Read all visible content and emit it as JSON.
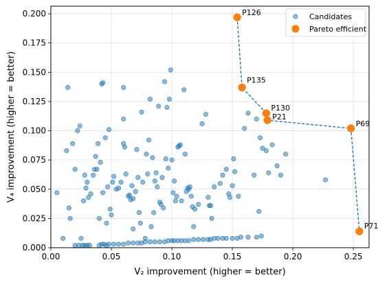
{
  "chart_data": {
    "type": "scatter",
    "xlabel": "V₂ improvement (higher = better)",
    "ylabel": "V₄ improvement (higher = better)",
    "xlim": [
      0.0,
      0.263
    ],
    "ylim": [
      0.0,
      0.2065
    ],
    "xticks": [
      0.0,
      0.05,
      0.1,
      0.15,
      0.2,
      0.25
    ],
    "xtick_labels": [
      "0.00",
      "0.05",
      "0.10",
      "0.15",
      "0.20",
      "0.25"
    ],
    "yticks": [
      0.0,
      0.025,
      0.05,
      0.075,
      0.1,
      0.125,
      0.15,
      0.175,
      0.2
    ],
    "ytick_labels": [
      "0.000",
      "0.025",
      "0.050",
      "0.075",
      "0.100",
      "0.125",
      "0.150",
      "0.175",
      "0.200"
    ],
    "grid": true,
    "legend_position": "top-right",
    "colors": {
      "candidates": "#1f77b4",
      "pareto": "#ff7f0e",
      "frontier_line": "#1f77b4"
    },
    "series": [
      {
        "name": "Candidates",
        "points": [
          [
            0.005,
            0.047
          ],
          [
            0.01,
            0.008
          ],
          [
            0.013,
            0.083
          ],
          [
            0.014,
            0.137
          ],
          [
            0.015,
            0.034
          ],
          [
            0.016,
            0.025
          ],
          [
            0.018,
            0.089
          ],
          [
            0.02,
            0.067
          ],
          [
            0.022,
            0.1
          ],
          [
            0.024,
            0.104
          ],
          [
            0.025,
            0.008
          ],
          [
            0.027,
            0.04
          ],
          [
            0.028,
            0.062
          ],
          [
            0.029,
            0.051
          ],
          [
            0.03,
            0.056
          ],
          [
            0.031,
            0.043
          ],
          [
            0.033,
            0.046
          ],
          [
            0.035,
            0.062
          ],
          [
            0.036,
            0.067
          ],
          [
            0.037,
            0.078
          ],
          [
            0.038,
            0.067
          ],
          [
            0.039,
            0.089
          ],
          [
            0.04,
            0.025
          ],
          [
            0.041,
            0.073
          ],
          [
            0.042,
            0.14
          ],
          [
            0.043,
            0.141
          ],
          [
            0.043,
            0.047
          ],
          [
            0.045,
            0.094
          ],
          [
            0.046,
            0.021
          ],
          [
            0.047,
            0.052
          ],
          [
            0.048,
            0.101
          ],
          [
            0.049,
            0.033
          ],
          [
            0.05,
            0.028
          ],
          [
            0.051,
            0.056
          ],
          [
            0.052,
            0.061
          ],
          [
            0.054,
            0.05
          ],
          [
            0.056,
            0.051
          ],
          [
            0.058,
            0.056
          ],
          [
            0.06,
            0.089
          ],
          [
            0.06,
            0.137
          ],
          [
            0.06,
            0.11
          ],
          [
            0.061,
            0.086
          ],
          [
            0.062,
            0.063
          ],
          [
            0.064,
            0.044
          ],
          [
            0.065,
            0.045
          ],
          [
            0.066,
            0.041
          ],
          [
            0.067,
            0.053
          ],
          [
            0.068,
            0.042
          ],
          [
            0.068,
            0.016
          ],
          [
            0.07,
            0.048
          ],
          [
            0.071,
            0.084
          ],
          [
            0.072,
            0.06
          ],
          [
            0.073,
            0.03
          ],
          [
            0.074,
            0.021
          ],
          [
            0.075,
            0.116
          ],
          [
            0.076,
            0.056
          ],
          [
            0.078,
            0.008
          ],
          [
            0.079,
            0.08
          ],
          [
            0.08,
            0.063
          ],
          [
            0.081,
            0.092
          ],
          [
            0.082,
            0.127
          ],
          [
            0.083,
            0.018
          ],
          [
            0.084,
            0.077
          ],
          [
            0.085,
            0.03
          ],
          [
            0.086,
            0.057
          ],
          [
            0.087,
            0.064
          ],
          [
            0.088,
            0.052
          ],
          [
            0.089,
            0.121
          ],
          [
            0.09,
            0.039
          ],
          [
            0.091,
            0.037
          ],
          [
            0.092,
            0.06
          ],
          [
            0.093,
            0.034
          ],
          [
            0.094,
            0.142
          ],
          [
            0.095,
            0.076
          ],
          [
            0.096,
            0.12
          ],
          [
            0.097,
            0.068
          ],
          [
            0.098,
            0.127
          ],
          [
            0.099,
            0.152
          ],
          [
            0.1,
            0.075
          ],
          [
            0.101,
            0.047
          ],
          [
            0.102,
            0.057
          ],
          [
            0.103,
            0.04
          ],
          [
            0.104,
            0.044
          ],
          [
            0.105,
            0.086
          ],
          [
            0.106,
            0.087
          ],
          [
            0.107,
            0.088
          ],
          [
            0.108,
            0.04
          ],
          [
            0.11,
            0.135
          ],
          [
            0.111,
            0.08
          ],
          [
            0.112,
            0.048
          ],
          [
            0.113,
            0.051
          ],
          [
            0.114,
            0.05
          ],
          [
            0.115,
            0.052
          ],
          [
            0.116,
            0.044
          ],
          [
            0.117,
            0.035
          ],
          [
            0.118,
            0.018
          ],
          [
            0.119,
            0.033
          ],
          [
            0.122,
            0.037
          ],
          [
            0.125,
            0.106
          ],
          [
            0.128,
            0.114
          ],
          [
            0.13,
            0.043
          ],
          [
            0.131,
            0.036
          ],
          [
            0.132,
            0.036
          ],
          [
            0.133,
            0.025
          ],
          [
            0.135,
            0.052
          ],
          [
            0.14,
            0.055
          ],
          [
            0.142,
            0.062
          ],
          [
            0.145,
            0.067
          ],
          [
            0.147,
            0.046
          ],
          [
            0.148,
            0.043
          ],
          [
            0.15,
            0.053
          ],
          [
            0.151,
            0.076
          ],
          [
            0.152,
            0.065
          ],
          [
            0.155,
            0.044
          ],
          [
            0.16,
            0.102
          ],
          [
            0.163,
            0.115
          ],
          [
            0.168,
            0.062
          ],
          [
            0.17,
            0.11
          ],
          [
            0.172,
            0.031
          ],
          [
            0.173,
            0.094
          ],
          [
            0.175,
            0.085
          ],
          [
            0.178,
            0.083
          ],
          [
            0.18,
            0.064
          ],
          [
            0.183,
            0.088
          ],
          [
            0.187,
            0.07
          ],
          [
            0.19,
            0.062
          ],
          [
            0.194,
            0.08
          ],
          [
            0.227,
            0.058
          ],
          [
            0.02,
            0.002
          ],
          [
            0.023,
            0.002
          ],
          [
            0.026,
            0.002
          ],
          [
            0.028,
            0.002
          ],
          [
            0.03,
            0.002
          ],
          [
            0.032,
            0.002
          ],
          [
            0.04,
            0.002
          ],
          [
            0.042,
            0.003
          ],
          [
            0.044,
            0.003
          ],
          [
            0.046,
            0.002
          ],
          [
            0.048,
            0.003
          ],
          [
            0.052,
            0.003
          ],
          [
            0.056,
            0.003
          ],
          [
            0.06,
            0.003
          ],
          [
            0.064,
            0.004
          ],
          [
            0.068,
            0.004
          ],
          [
            0.072,
            0.004
          ],
          [
            0.075,
            0.004
          ],
          [
            0.078,
            0.005
          ],
          [
            0.082,
            0.005
          ],
          [
            0.086,
            0.005
          ],
          [
            0.09,
            0.005
          ],
          [
            0.094,
            0.005
          ],
          [
            0.097,
            0.006
          ],
          [
            0.1,
            0.006
          ],
          [
            0.102,
            0.006
          ],
          [
            0.105,
            0.006
          ],
          [
            0.108,
            0.006
          ],
          [
            0.111,
            0.006
          ],
          [
            0.114,
            0.006
          ],
          [
            0.118,
            0.007
          ],
          [
            0.122,
            0.007
          ],
          [
            0.126,
            0.007
          ],
          [
            0.13,
            0.007
          ],
          [
            0.132,
            0.007
          ],
          [
            0.135,
            0.008
          ],
          [
            0.138,
            0.008
          ],
          [
            0.142,
            0.008
          ],
          [
            0.145,
            0.008
          ],
          [
            0.15,
            0.008
          ],
          [
            0.154,
            0.008
          ],
          [
            0.157,
            0.009
          ],
          [
            0.163,
            0.009
          ],
          [
            0.17,
            0.009
          ],
          [
            0.174,
            0.01
          ]
        ]
      },
      {
        "name": "Pareto efficient",
        "points": [
          {
            "label": "P126",
            "x": 0.154,
            "y": 0.197
          },
          {
            "label": "P135",
            "x": 0.158,
            "y": 0.137
          },
          {
            "label": "P130",
            "x": 0.178,
            "y": 0.115
          },
          {
            "label": "P21",
            "x": 0.179,
            "y": 0.109
          },
          {
            "label": "P69",
            "x": 0.248,
            "y": 0.102
          },
          {
            "label": "P71",
            "x": 0.255,
            "y": 0.014
          }
        ]
      }
    ]
  }
}
